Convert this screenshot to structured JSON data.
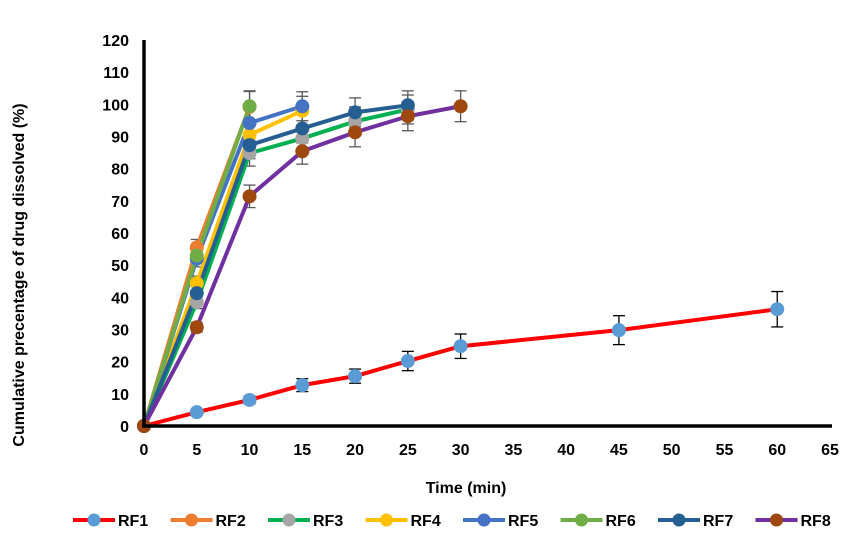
{
  "chart_data": {
    "type": "line",
    "title": "",
    "xlabel": "Time (min)",
    "ylabel": "Cumulative precentage of drug dissolved  (%)",
    "xlim": [
      0,
      65
    ],
    "ylim": [
      0,
      120
    ],
    "xticks": [
      "0",
      "5",
      "10",
      "15",
      "20",
      "25",
      "30",
      "35",
      "40",
      "45",
      "50",
      "55",
      "60",
      "65"
    ],
    "yticks": [
      "0",
      "10",
      "20",
      "30",
      "40",
      "50",
      "60",
      "70",
      "80",
      "90",
      "100",
      "110",
      "120"
    ],
    "grid": false,
    "legend_position": "bottom",
    "series": [
      {
        "name": "RF1",
        "line_color": "#FF0000",
        "marker_color": "#5B9BD5",
        "x": [
          0,
          5,
          10,
          15,
          20,
          25,
          30,
          45,
          60
        ],
        "y": [
          0,
          4.3,
          8.1,
          12.7,
          15.5,
          20.2,
          24.8,
          29.8,
          36.3
        ],
        "err": [
          0,
          0.8,
          1.2,
          2.0,
          2.2,
          3.0,
          3.8,
          4.5,
          5.5
        ]
      },
      {
        "name": "RF2",
        "line_color": "#ED7D31",
        "marker_color": "#ED7D31",
        "x": [
          0,
          5,
          10
        ],
        "y": [
          0,
          55.5,
          99.2
        ],
        "err": [
          0,
          2.5,
          4.8
        ]
      },
      {
        "name": "RF3",
        "line_color": "#00B050",
        "marker_color": "#A5A5A5",
        "x": [
          0,
          5,
          10,
          15,
          20,
          25
        ],
        "y": [
          0,
          38.5,
          84.8,
          89.4,
          94.7,
          98.4
        ],
        "err": [
          0,
          2.0,
          4.0,
          4.0,
          4.5,
          4.5
        ]
      },
      {
        "name": "RF4",
        "line_color": "#FFC000",
        "marker_color": "#FFC000",
        "x": [
          0,
          5,
          10,
          15
        ],
        "y": [
          0,
          44.4,
          90.5,
          98.0
        ],
        "err": [
          0,
          2.2,
          4.3,
          4.5
        ]
      },
      {
        "name": "RF5",
        "line_color": "#4472C4",
        "marker_color": "#4472C4",
        "x": [
          0,
          5,
          10,
          15
        ],
        "y": [
          0,
          52.0,
          94.2,
          99.4
        ],
        "err": [
          0,
          2.5,
          4.5,
          4.5
        ]
      },
      {
        "name": "RF6",
        "line_color": "#70AD47",
        "marker_color": "#70AD47",
        "x": [
          0,
          5,
          10
        ],
        "y": [
          0,
          53.0,
          99.4
        ],
        "err": [
          0,
          2.5,
          4.8
        ]
      },
      {
        "name": "RF7",
        "line_color": "#255E91",
        "marker_color": "#255E91",
        "x": [
          0,
          5,
          10,
          15,
          20,
          25
        ],
        "y": [
          0,
          41.3,
          87.3,
          92.5,
          97.5,
          99.7
        ],
        "err": [
          0,
          2.0,
          4.2,
          4.5,
          4.5,
          4.5
        ]
      },
      {
        "name": "RF8",
        "line_color": "#7030A0",
        "marker_color": "#9E480E",
        "x": [
          0,
          5,
          10,
          15,
          20,
          25,
          30
        ],
        "y": [
          0,
          30.7,
          71.4,
          85.4,
          91.3,
          96.3,
          99.4
        ],
        "err": [
          0,
          1.5,
          3.5,
          4.0,
          4.5,
          4.5,
          4.8
        ]
      }
    ]
  }
}
